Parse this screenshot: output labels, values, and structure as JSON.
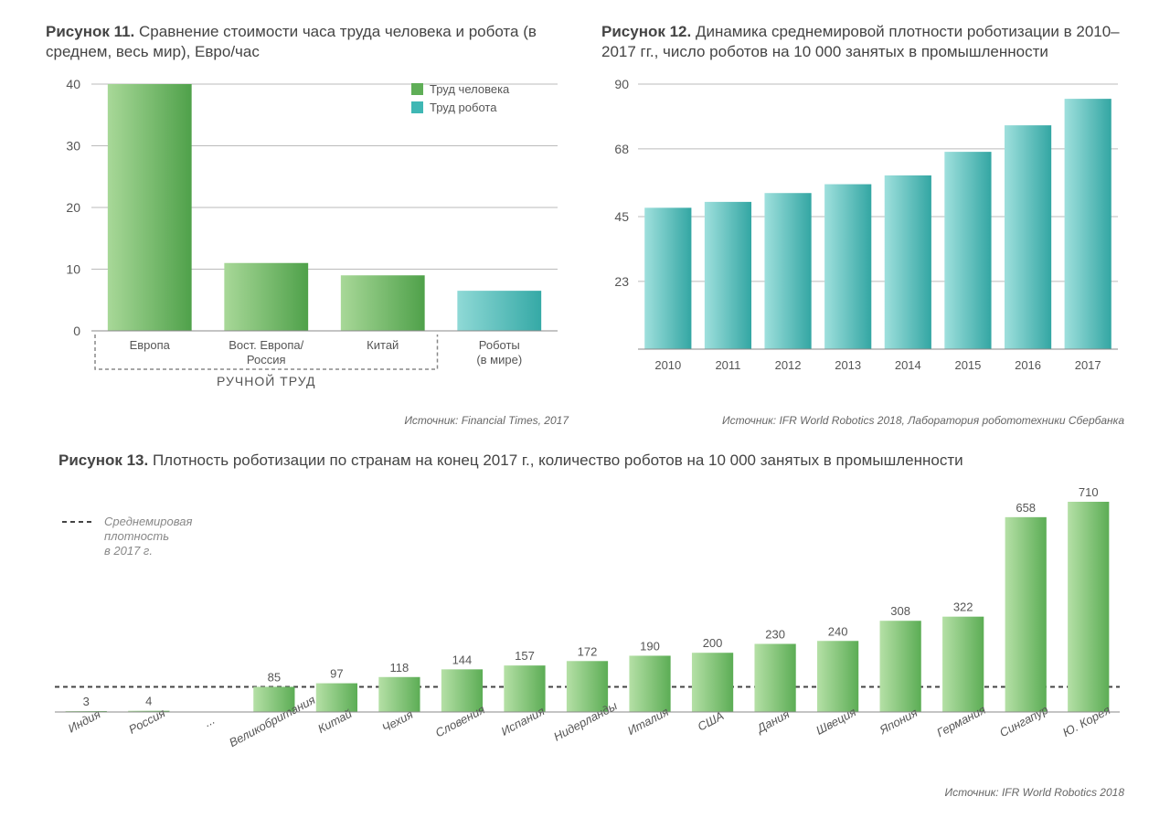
{
  "chart11": {
    "title_bold": "Рисунок 11.",
    "title_rest": " Сравнение стоимости часа труда человека и робота (в среднем, весь мир), Евро/час",
    "type": "bar",
    "categories": [
      "Европа",
      "Вост. Европа/\nРоссия",
      "Китай",
      "Роботы\n(в мире)"
    ],
    "values": [
      40,
      11,
      9,
      6.5
    ],
    "is_robot": [
      false,
      false,
      false,
      true
    ],
    "ylim": [
      0,
      40
    ],
    "yticks": [
      0,
      10,
      20,
      30,
      40
    ],
    "colors": {
      "human_light": "#a8d898",
      "human_dark": "#4fa14a",
      "robot_light": "#8fd9d6",
      "robot_dark": "#35a9a6",
      "axis": "#888888",
      "grid": "#bbbbbb",
      "text": "#555555"
    },
    "legend": [
      {
        "label": "Труд человека",
        "color": "#5fae57"
      },
      {
        "label": "Труд робота",
        "color": "#3fb7b4"
      }
    ],
    "bracket_label": "РУЧНОЙ ТРУД",
    "source": "Источник: Financial Times, 2017"
  },
  "chart12": {
    "title_bold": "Рисунок 12.",
    "title_rest": " Динамика среднемировой плотности роботизации в 2010–2017 гг., число роботов на 10 000 занятых в промышленности",
    "type": "bar",
    "categories": [
      "2010",
      "2011",
      "2012",
      "2013",
      "2014",
      "2015",
      "2016",
      "2017"
    ],
    "values": [
      48,
      50,
      53,
      56,
      59,
      67,
      76,
      85
    ],
    "ylim": [
      0,
      90
    ],
    "yticks": [
      23,
      45,
      68,
      90
    ],
    "colors": {
      "bar_light": "#9fe0dd",
      "bar_dark": "#33a6a3",
      "axis": "#888888",
      "grid": "#bbbbbb",
      "text": "#555555"
    },
    "source": "Источник: IFR World Robotics 2018, Лаборатория робототехники Сбербанка"
  },
  "chart13": {
    "title_bold": "Рисунок 13.",
    "title_rest": " Плотность роботизации по странам на конец 2017 г., количество роботов на 10 000 занятых в промышленности",
    "type": "bar",
    "categories": [
      "Индия",
      "Россия",
      "...",
      "Великобритания",
      "Китай",
      "Чехия",
      "Словения",
      "Испания",
      "Нидерланды",
      "Италия",
      "США",
      "Дания",
      "Швеция",
      "Япония",
      "Германия",
      "Сингапур",
      "Ю. Корея"
    ],
    "values": [
      3,
      4,
      null,
      85,
      97,
      118,
      144,
      157,
      172,
      190,
      200,
      230,
      240,
      308,
      322,
      658,
      710
    ],
    "ymax": 710,
    "avg_line_value": 85,
    "avg_legend": "Среднемировая\nплотность\nв 2017 г.",
    "colors": {
      "bar_light": "#b5e0a6",
      "bar_dark": "#5cad55",
      "axis": "#888888",
      "text": "#555555",
      "dash": "#444444"
    },
    "source": "Источник: IFR World Robotics 2018"
  }
}
